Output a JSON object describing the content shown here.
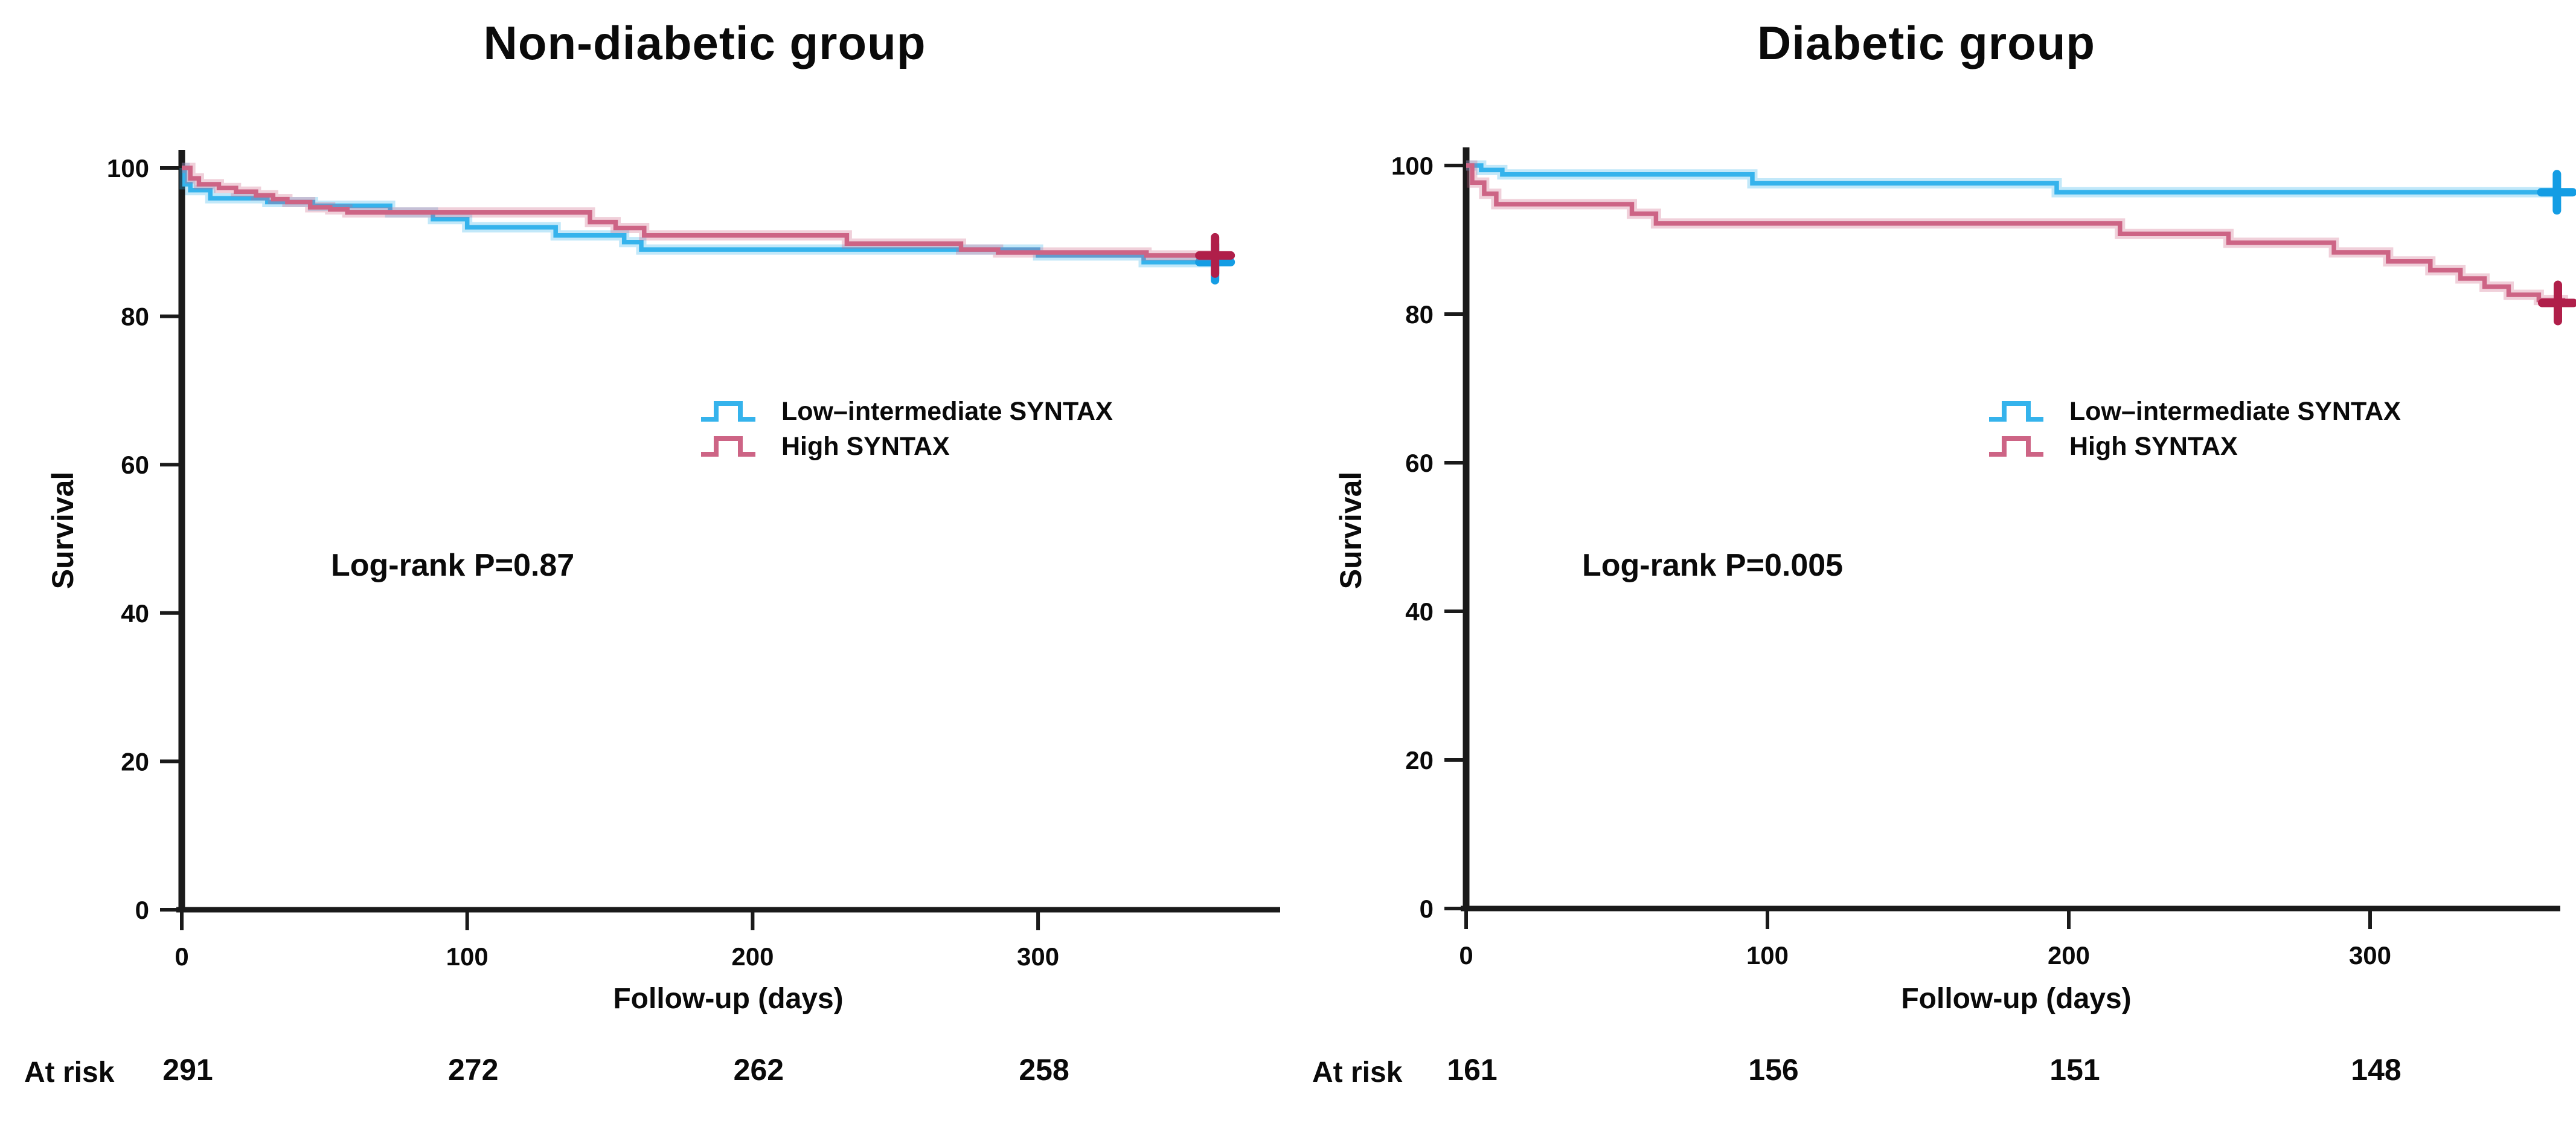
{
  "figure_name": "Kaplan-Meier survival by SYNTAX score, non-diabetic vs diabetic groups",
  "colors": {
    "low_intermediate_line": "#35b3ec",
    "low_intermediate_marker": "#149de4",
    "high_line": "#cd6485",
    "high_marker": "#b01f4a",
    "axis": "#1a1a1a",
    "text": "#0a0a0a",
    "background": "#ffffff"
  },
  "chart_data": [
    {
      "type": "line",
      "subtype": "kaplan-meier-step",
      "title": "Non-diabetic group",
      "xlabel": "Follow-up (days)",
      "ylabel": "Survival",
      "annotation": "Log-rank P=0.87",
      "xlim": [
        0,
        385
      ],
      "ylim": [
        0,
        100
      ],
      "x_ticks": [
        0,
        100,
        200,
        300
      ],
      "y_ticks": [
        100,
        80,
        60,
        40,
        20,
        0
      ],
      "grid": false,
      "legend_position": "right-center",
      "series": [
        {
          "name": "Low–intermediate SYNTAX",
          "color": "#35b3ec",
          "marker_color": "#149de4",
          "censor_day": 362,
          "points": [
            [
              0,
              100
            ],
            [
              1,
              97.8
            ],
            [
              3,
              97.0
            ],
            [
              10,
              95.9
            ],
            [
              30,
              95.4
            ],
            [
              46,
              94.9
            ],
            [
              73,
              94.0
            ],
            [
              88,
              93.1
            ],
            [
              100,
              92.0
            ],
            [
              131,
              90.9
            ],
            [
              155,
              90.0
            ],
            [
              161,
              89.0
            ],
            [
              300,
              88.2
            ],
            [
              337,
              87.3
            ],
            [
              362,
              87.3
            ]
          ]
        },
        {
          "name": "High SYNTAX",
          "color": "#cd6485",
          "marker_color": "#b01f4a",
          "censor_day": 362,
          "points": [
            [
              0,
              100
            ],
            [
              3,
              98.6
            ],
            [
              6,
              97.8
            ],
            [
              13,
              97.3
            ],
            [
              19,
              96.8
            ],
            [
              26,
              96.3
            ],
            [
              32,
              95.8
            ],
            [
              37,
              95.4
            ],
            [
              45,
              94.7
            ],
            [
              52,
              94.4
            ],
            [
              58,
              94.0
            ],
            [
              143,
              92.7
            ],
            [
              152,
              91.9
            ],
            [
              162,
              90.9
            ],
            [
              233,
              89.8
            ],
            [
              273,
              89.0
            ],
            [
              286,
              88.6
            ],
            [
              338,
              88.2
            ],
            [
              362,
              88.2
            ]
          ]
        }
      ],
      "at_risk": {
        "label": "At risk",
        "days": [
          0,
          100,
          200,
          300
        ],
        "counts": [
          291,
          272,
          262,
          258
        ]
      }
    },
    {
      "type": "line",
      "subtype": "kaplan-meier-step",
      "title": "Diabetic group",
      "xlabel": "Follow-up (days)",
      "ylabel": "Survival",
      "annotation": "Log-rank P=0.005",
      "xlim": [
        0,
        380
      ],
      "ylim": [
        0,
        100
      ],
      "x_ticks": [
        0,
        100,
        200,
        300
      ],
      "y_ticks": [
        100,
        80,
        60,
        40,
        20,
        0
      ],
      "grid": false,
      "legend_position": "right-center",
      "series": [
        {
          "name": "Low–intermediate SYNTAX",
          "color": "#35b3ec",
          "marker_color": "#149de4",
          "censor_day": 362,
          "points": [
            [
              0,
              100
            ],
            [
              5,
              99.4
            ],
            [
              12,
              98.8
            ],
            [
              95,
              97.6
            ],
            [
              196,
              96.4
            ],
            [
              362,
              96.4
            ]
          ]
        },
        {
          "name": "High SYNTAX",
          "color": "#cd6485",
          "marker_color": "#b01f4a",
          "censor_day": 364,
          "points": [
            [
              0,
              100
            ],
            [
              2,
              97.7
            ],
            [
              6,
              96.2
            ],
            [
              10,
              94.8
            ],
            [
              55,
              93.5
            ],
            [
              63,
              92.2
            ],
            [
              217,
              90.8
            ],
            [
              253,
              89.6
            ],
            [
              288,
              88.3
            ],
            [
              306,
              87.1
            ],
            [
              320,
              85.9
            ],
            [
              330,
              84.8
            ],
            [
              338,
              83.7
            ],
            [
              346,
              82.6
            ],
            [
              356,
              81.9
            ],
            [
              364,
              81.5
            ]
          ]
        }
      ],
      "at_risk": {
        "label": "At risk",
        "days": [
          0,
          100,
          200,
          300
        ],
        "counts": [
          161,
          156,
          151,
          148
        ]
      }
    }
  ]
}
